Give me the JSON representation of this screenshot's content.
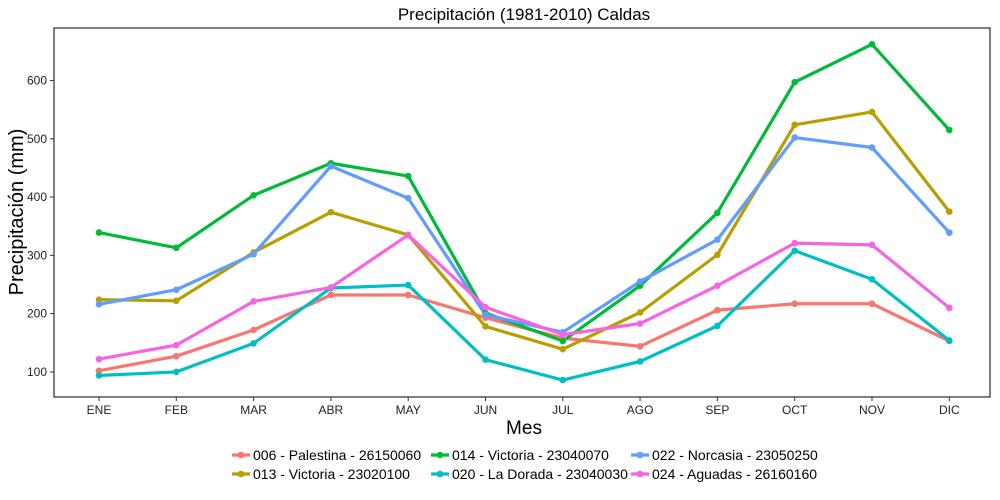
{
  "chart_data": {
    "type": "line",
    "title": "Precipitación (1981-2010)  Caldas",
    "xlabel": "Mes",
    "ylabel": "Precipitación (mm)",
    "categories": [
      "ENE",
      "FEB",
      "MAR",
      "ABR",
      "MAY",
      "JUN",
      "JUL",
      "AGO",
      "SEP",
      "OCT",
      "NOV",
      "DIC"
    ],
    "ylim": [
      57,
      690
    ],
    "yticks": [
      100,
      200,
      300,
      400,
      500,
      600
    ],
    "grid": false,
    "legend_position": "bottom",
    "series": [
      {
        "name": "006 - Palestina - 26150060",
        "color": "#F8766D",
        "values": [
          102,
          127,
          172,
          232,
          232,
          193,
          158,
          144,
          206,
          217,
          217,
          153
        ]
      },
      {
        "name": "013 - Victoria - 23020100",
        "color": "#B79F00",
        "values": [
          224,
          222,
          305,
          374,
          335,
          178,
          139,
          202,
          301,
          524,
          546,
          375
        ]
      },
      {
        "name": "014 - Victoria - 23040070",
        "color": "#00BA38",
        "values": [
          339,
          313,
          403,
          458,
          436,
          201,
          153,
          248,
          373,
          597,
          662,
          515
        ]
      },
      {
        "name": "020 - La Dorada - 23040030",
        "color": "#00BFC4",
        "values": [
          94,
          100,
          149,
          244,
          249,
          121,
          86,
          118,
          179,
          308,
          259,
          154
        ]
      },
      {
        "name": "022 - Norcasia - 23050250",
        "color": "#619CFF",
        "values": [
          216,
          241,
          302,
          453,
          398,
          198,
          168,
          255,
          327,
          502,
          485,
          339
        ]
      },
      {
        "name": "024 - Aguadas - 26160160",
        "color": "#F564E3",
        "values": [
          122,
          146,
          221,
          245,
          335,
          211,
          164,
          183,
          248,
          321,
          318,
          210
        ]
      }
    ]
  }
}
